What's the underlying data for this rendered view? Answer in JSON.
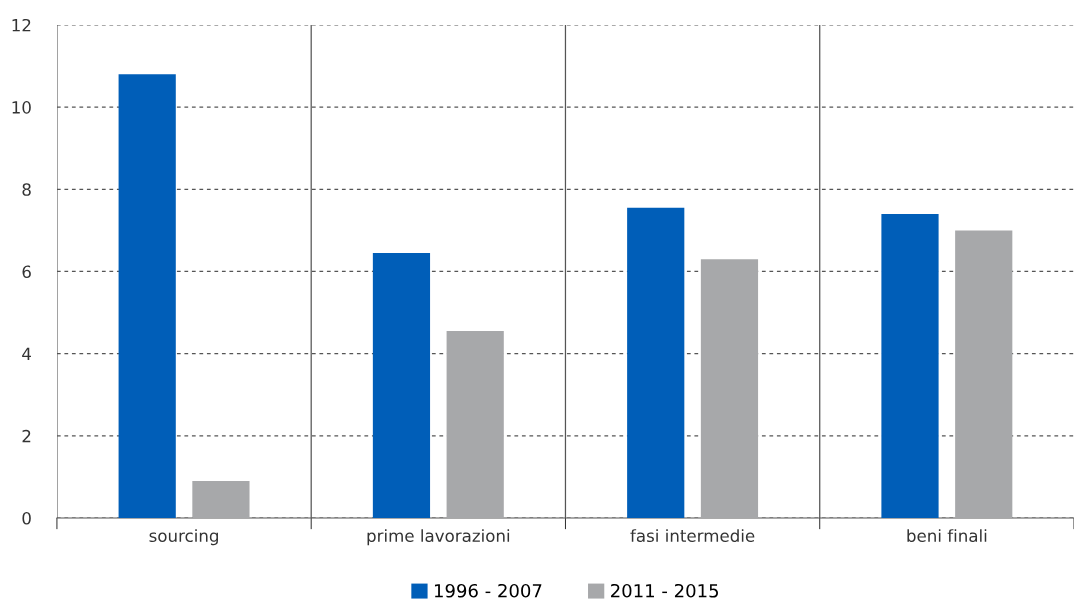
{
  "chart_data": {
    "type": "bar",
    "categories": [
      "sourcing",
      "prime lavorazioni",
      "fasi intermedie",
      "beni finali"
    ],
    "series": [
      {
        "name": "1996 - 2007",
        "color": "#005eb8",
        "values": [
          10.8,
          6.45,
          7.55,
          7.4
        ]
      },
      {
        "name": "2011 - 2015",
        "color": "#a7a8aa",
        "values": [
          0.9,
          4.55,
          6.3,
          7.0
        ]
      }
    ],
    "ylim": [
      0,
      12
    ],
    "yticks": [
      0,
      2,
      4,
      6,
      8,
      10,
      12
    ],
    "grid": true,
    "legend": "bottom"
  }
}
